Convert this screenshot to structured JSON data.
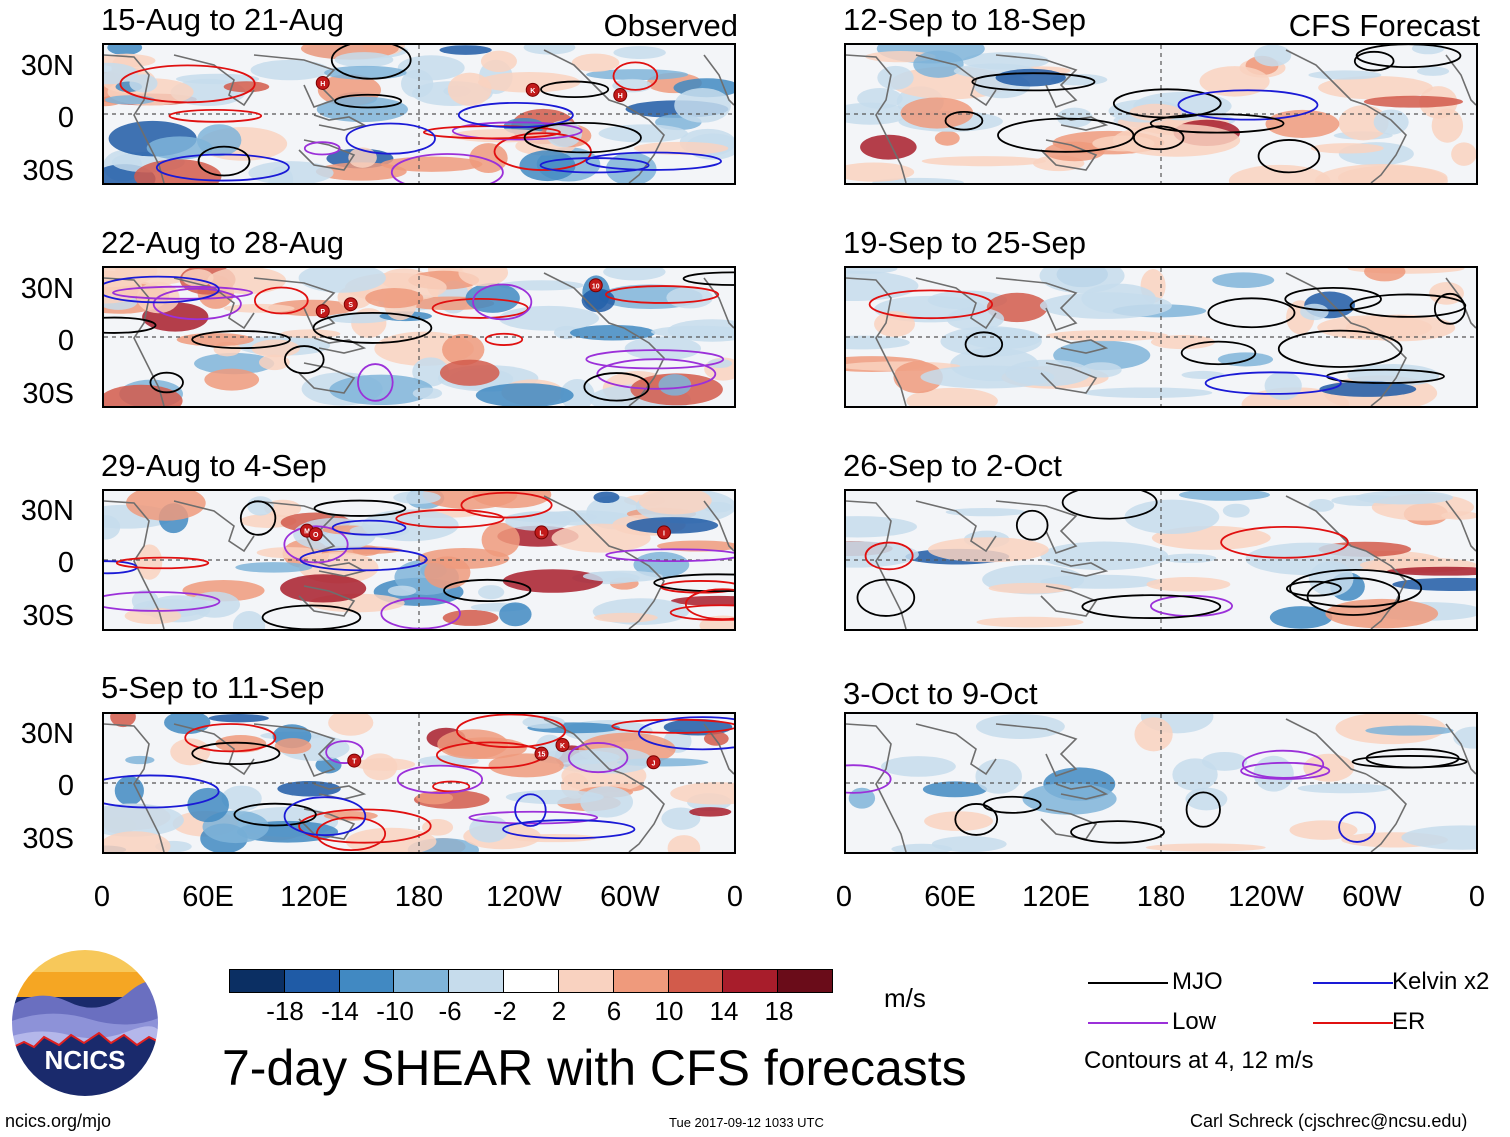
{
  "observed_label": "Observed",
  "forecast_label": "CFS Forecast",
  "observed_panels": [
    {
      "title": "15-Aug to 21-Aug",
      "storms": [
        {
          "label": "H",
          "lon": 125,
          "lat": 18
        },
        {
          "label": "K",
          "lon": 245,
          "lat": 14
        },
        {
          "label": "H",
          "lon": 295,
          "lat": 11
        }
      ]
    },
    {
      "title": "22-Aug to 28-Aug",
      "storms": [
        {
          "label": "10",
          "lon": 281,
          "lat": 30
        },
        {
          "label": "S",
          "lon": 141,
          "lat": 19
        },
        {
          "label": "P",
          "lon": 125,
          "lat": 15
        }
      ]
    },
    {
      "title": "29-Aug to 4-Sep",
      "storms": [
        {
          "label": "M",
          "lon": 116,
          "lat": 17
        },
        {
          "label": "O",
          "lon": 121,
          "lat": 15
        },
        {
          "label": "L",
          "lon": 250,
          "lat": 16
        },
        {
          "label": "I",
          "lon": 320,
          "lat": 16
        }
      ]
    },
    {
      "title": "5-Sep to 11-Sep",
      "storms": [
        {
          "label": "T",
          "lon": 143,
          "lat": 13
        },
        {
          "label": "15",
          "lon": 250,
          "lat": 17
        },
        {
          "label": "K",
          "lon": 262,
          "lat": 22
        },
        {
          "label": "J",
          "lon": 314,
          "lat": 12
        }
      ]
    }
  ],
  "forecast_panels": [
    {
      "title": "12-Sep to 18-Sep"
    },
    {
      "title": "19-Sep to 25-Sep"
    },
    {
      "title": "26-Sep to 2-Oct"
    },
    {
      "title": "3-Oct to 9-Oct"
    }
  ],
  "lat_labels": [
    "30N",
    "0",
    "30S"
  ],
  "lon_labels": [
    "0",
    "60E",
    "120E",
    "180",
    "120W",
    "60W",
    "0"
  ],
  "colorbar": {
    "ticks": [
      "-18",
      "-14",
      "-10",
      "-6",
      "-2",
      "2",
      "6",
      "10",
      "14",
      "18"
    ],
    "colors": [
      "#0b2f63",
      "#1f5ba6",
      "#4189c2",
      "#7fb4d9",
      "#c6dcec",
      "#ffffff",
      "#f9d2c0",
      "#ef9a7c",
      "#d25b4b",
      "#a81d2b",
      "#6a0c19"
    ],
    "units": "m/s"
  },
  "legend": {
    "mjo": {
      "label": "MJO",
      "color": "#000000"
    },
    "kelvin": {
      "label": "Kelvin x2",
      "color": "#1a1ad6"
    },
    "low": {
      "label": "Low",
      "color": "#9b30d9"
    },
    "er": {
      "label": "ER",
      "color": "#e01010"
    },
    "note": "Contours at 4, 12 m/s"
  },
  "logo_text": "NCICS",
  "main_title": "7-day SHEAR with CFS forecasts",
  "footer_left": "ncics.org/mjo",
  "footer_center": "Tue 2017-09-12 1033 UTC",
  "footer_right": "Carl Schreck (cjschrec@ncsu.edu)"
}
